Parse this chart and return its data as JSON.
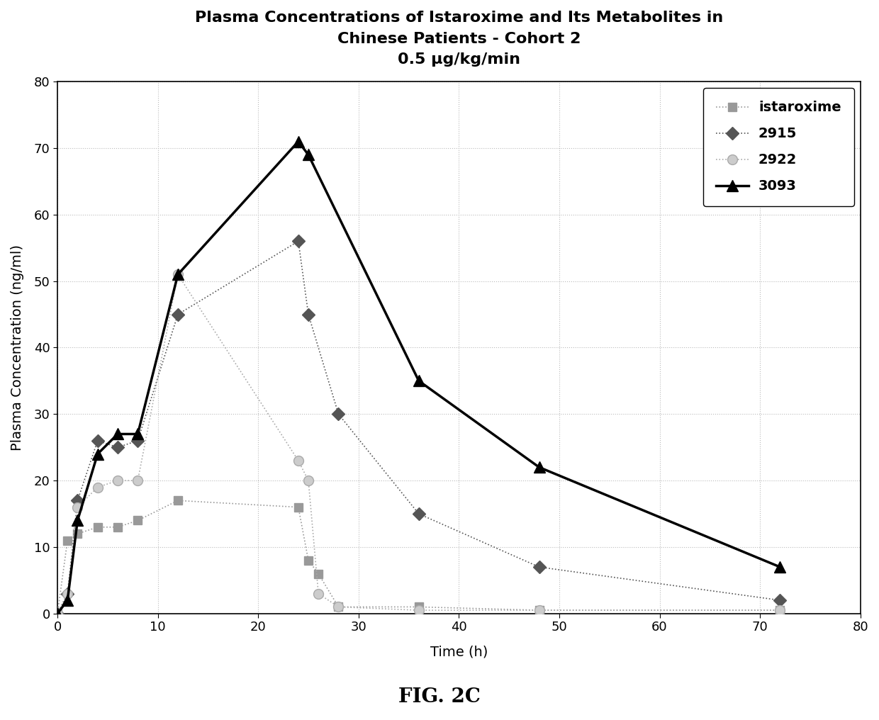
{
  "title_line1": "Plasma Concentrations of Istaroxime and Its Metabolites in",
  "title_line2": "Chinese Patients - Cohort 2",
  "title_line3": "0.5 μg/kg/min",
  "xlabel": "Time (h)",
  "ylabel": "Plasma Concentration (ng/ml)",
  "xlim": [
    0,
    80
  ],
  "ylim": [
    0,
    80
  ],
  "xticks": [
    0,
    10,
    20,
    30,
    40,
    50,
    60,
    70,
    80
  ],
  "yticks": [
    0,
    10,
    20,
    30,
    40,
    50,
    60,
    70,
    80
  ],
  "fig_caption": "FIG. 2C",
  "series": {
    "istaroxime": {
      "x": [
        0,
        1,
        2,
        4,
        6,
        8,
        12,
        24,
        25,
        26,
        28,
        36,
        48,
        72
      ],
      "y": [
        0,
        11,
        12,
        13,
        13,
        14,
        17,
        16,
        8,
        6,
        1,
        1,
        0.5,
        0.5
      ],
      "color": "#999999",
      "marker": "s",
      "marker_size": 9,
      "linewidth": 1.2,
      "linestyle": ":"
    },
    "2915": {
      "x": [
        0,
        1,
        2,
        4,
        6,
        8,
        12,
        24,
        25,
        28,
        36,
        48,
        72
      ],
      "y": [
        0,
        3,
        17,
        26,
        25,
        26,
        45,
        56,
        45,
        30,
        15,
        7,
        2
      ],
      "color": "#555555",
      "marker": "D",
      "marker_size": 9,
      "linewidth": 1.2,
      "linestyle": ":"
    },
    "2922": {
      "x": [
        0,
        1,
        2,
        4,
        6,
        8,
        12,
        24,
        25,
        26,
        28,
        36,
        48,
        72
      ],
      "y": [
        0,
        3,
        16,
        19,
        20,
        20,
        51,
        23,
        20,
        3,
        1,
        0.5,
        0.5,
        0.5
      ],
      "color": "#aaaaaa",
      "marker": "o",
      "marker_size": 10,
      "linewidth": 1.2,
      "linestyle": ":"
    },
    "3093": {
      "x": [
        0,
        1,
        2,
        4,
        6,
        8,
        12,
        24,
        25,
        36,
        48,
        72
      ],
      "y": [
        0,
        2,
        14,
        24,
        27,
        27,
        51,
        71,
        69,
        35,
        22,
        7
      ],
      "color": "#000000",
      "marker": "^",
      "marker_size": 11,
      "linewidth": 2.5,
      "linestyle": "-"
    }
  },
  "legend_fontsize": 13,
  "tick_fontsize": 13,
  "axis_label_fontsize": 14,
  "title_fontsize": 16,
  "background_color": "#ffffff",
  "grid_color": "#bbbbbb",
  "grid_linestyle": ":",
  "grid_linewidth": 0.8
}
